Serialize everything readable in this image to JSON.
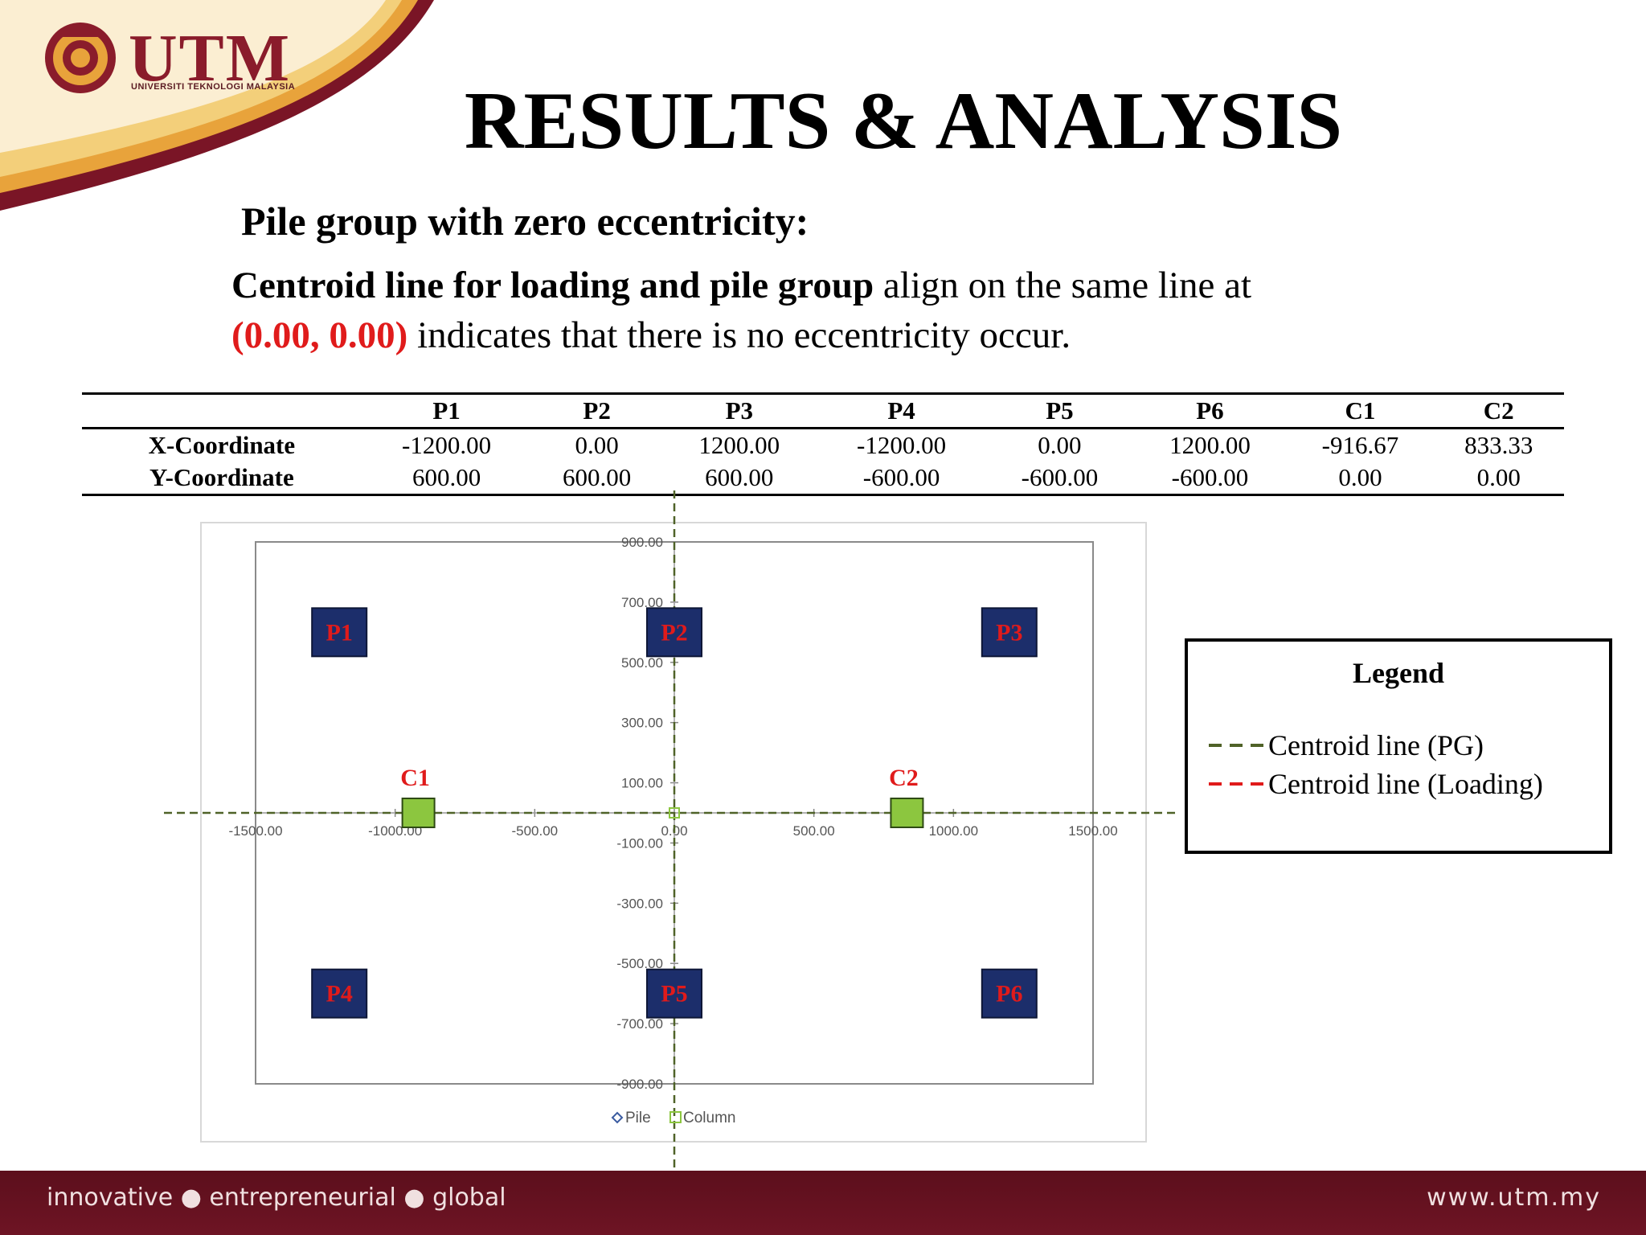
{
  "branding": {
    "logo_text": "UTM",
    "logo_subtext": "UNIVERSITI TEKNOLOGI MALAYSIA",
    "footer_tagline": "innovative ● entrepreneurial ● global",
    "footer_url": "www.utm.my",
    "colors": {
      "maroon": "#7a1526",
      "gold": "#e8a33b",
      "pile": "#1c2e6b",
      "column": "#8cc63f",
      "label_red": "#e01b1b"
    }
  },
  "slide": {
    "title": "RESULTS & ANALYSIS",
    "subtitle": "Pile group with zero eccentricity:",
    "desc_bold": "Centroid line for loading and pile group",
    "desc_rest1": " align on the same line at",
    "desc_red": "(0.00, 0.00)",
    "desc_rest2": " indicates that there is no eccentricity occur."
  },
  "table": {
    "headers": [
      "",
      "P1",
      "P2",
      "P3",
      "P4",
      "P5",
      "P6",
      "C1",
      "C2"
    ],
    "rows": [
      {
        "label": "X-Coordinate",
        "values": [
          "-1200.00",
          "0.00",
          "1200.00",
          "-1200.00",
          "0.00",
          "1200.00",
          "-916.67",
          "833.33"
        ]
      },
      {
        "label": "Y-Coordinate",
        "values": [
          "600.00",
          "600.00",
          "600.00",
          "-600.00",
          "-600.00",
          "-600.00",
          "0.00",
          "0.00"
        ]
      }
    ]
  },
  "chart_data": {
    "type": "scatter",
    "xlim": [
      -1500,
      1500
    ],
    "ylim": [
      -900,
      900
    ],
    "x_ticks": [
      "-1500.00",
      "-1000.00",
      "-500.00",
      "0.00",
      "500.00",
      "1000.00",
      "1500.00"
    ],
    "y_ticks": [
      "900.00",
      "700.00",
      "500.00",
      "300.00",
      "100.00",
      "-100.00",
      "-300.00",
      "-500.00",
      "-700.00",
      "-900.00"
    ],
    "series": [
      {
        "name": "Pile",
        "points": [
          {
            "label": "P1",
            "x": -1200,
            "y": 600
          },
          {
            "label": "P2",
            "x": 0,
            "y": 600
          },
          {
            "label": "P3",
            "x": 1200,
            "y": 600
          },
          {
            "label": "P4",
            "x": -1200,
            "y": -600
          },
          {
            "label": "P5",
            "x": 0,
            "y": -600
          },
          {
            "label": "P6",
            "x": 1200,
            "y": -600
          }
        ]
      },
      {
        "name": "Column",
        "points": [
          {
            "label": "C1",
            "x": -916.67,
            "y": 0
          },
          {
            "label": "C2",
            "x": 833.33,
            "y": 0
          }
        ]
      }
    ],
    "legend_entries": [
      "Pile",
      "Column"
    ],
    "centroid_lines": {
      "x": 0,
      "y": 0
    }
  },
  "legend_box": {
    "title": "Legend",
    "items": [
      {
        "label": "Centroid line (PG)",
        "color": "#4f6228"
      },
      {
        "label": "Centroid line (Loading)",
        "color": "#e01b1b"
      }
    ]
  }
}
